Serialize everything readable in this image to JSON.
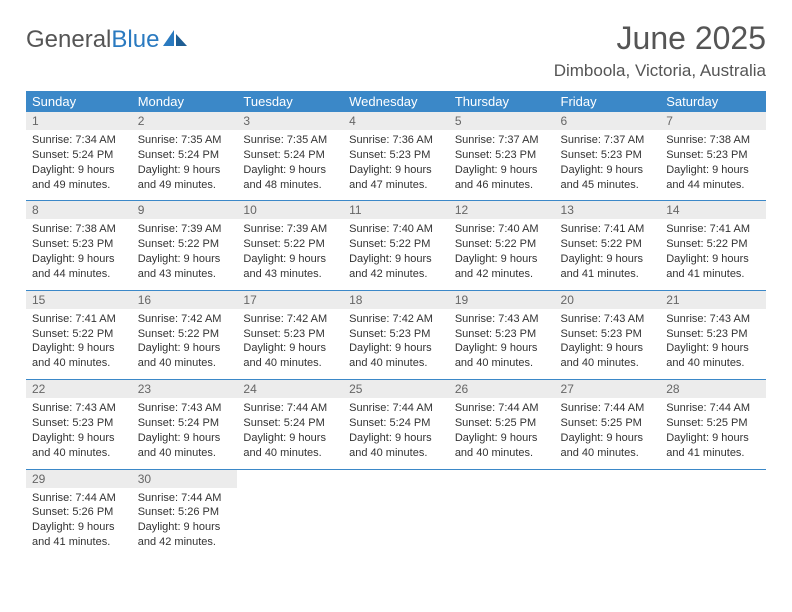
{
  "brand": {
    "word1": "General",
    "word2": "Blue",
    "accent_color": "#2a7ac0"
  },
  "title": "June 2025",
  "location": "Dimboola, Victoria, Australia",
  "colors": {
    "header_bg": "#3b88c8",
    "header_text": "#ffffff",
    "daynum_bg": "#ececec",
    "text": "#333333",
    "rule": "#3b88c8"
  },
  "day_headers": [
    "Sunday",
    "Monday",
    "Tuesday",
    "Wednesday",
    "Thursday",
    "Friday",
    "Saturday"
  ],
  "weeks": [
    [
      {
        "n": "1",
        "sr": "Sunrise: 7:34 AM",
        "ss": "Sunset: 5:24 PM",
        "dl": "Daylight: 9 hours and 49 minutes."
      },
      {
        "n": "2",
        "sr": "Sunrise: 7:35 AM",
        "ss": "Sunset: 5:24 PM",
        "dl": "Daylight: 9 hours and 49 minutes."
      },
      {
        "n": "3",
        "sr": "Sunrise: 7:35 AM",
        "ss": "Sunset: 5:24 PM",
        "dl": "Daylight: 9 hours and 48 minutes."
      },
      {
        "n": "4",
        "sr": "Sunrise: 7:36 AM",
        "ss": "Sunset: 5:23 PM",
        "dl": "Daylight: 9 hours and 47 minutes."
      },
      {
        "n": "5",
        "sr": "Sunrise: 7:37 AM",
        "ss": "Sunset: 5:23 PM",
        "dl": "Daylight: 9 hours and 46 minutes."
      },
      {
        "n": "6",
        "sr": "Sunrise: 7:37 AM",
        "ss": "Sunset: 5:23 PM",
        "dl": "Daylight: 9 hours and 45 minutes."
      },
      {
        "n": "7",
        "sr": "Sunrise: 7:38 AM",
        "ss": "Sunset: 5:23 PM",
        "dl": "Daylight: 9 hours and 44 minutes."
      }
    ],
    [
      {
        "n": "8",
        "sr": "Sunrise: 7:38 AM",
        "ss": "Sunset: 5:23 PM",
        "dl": "Daylight: 9 hours and 44 minutes."
      },
      {
        "n": "9",
        "sr": "Sunrise: 7:39 AM",
        "ss": "Sunset: 5:22 PM",
        "dl": "Daylight: 9 hours and 43 minutes."
      },
      {
        "n": "10",
        "sr": "Sunrise: 7:39 AM",
        "ss": "Sunset: 5:22 PM",
        "dl": "Daylight: 9 hours and 43 minutes."
      },
      {
        "n": "11",
        "sr": "Sunrise: 7:40 AM",
        "ss": "Sunset: 5:22 PM",
        "dl": "Daylight: 9 hours and 42 minutes."
      },
      {
        "n": "12",
        "sr": "Sunrise: 7:40 AM",
        "ss": "Sunset: 5:22 PM",
        "dl": "Daylight: 9 hours and 42 minutes."
      },
      {
        "n": "13",
        "sr": "Sunrise: 7:41 AM",
        "ss": "Sunset: 5:22 PM",
        "dl": "Daylight: 9 hours and 41 minutes."
      },
      {
        "n": "14",
        "sr": "Sunrise: 7:41 AM",
        "ss": "Sunset: 5:22 PM",
        "dl": "Daylight: 9 hours and 41 minutes."
      }
    ],
    [
      {
        "n": "15",
        "sr": "Sunrise: 7:41 AM",
        "ss": "Sunset: 5:22 PM",
        "dl": "Daylight: 9 hours and 40 minutes."
      },
      {
        "n": "16",
        "sr": "Sunrise: 7:42 AM",
        "ss": "Sunset: 5:22 PM",
        "dl": "Daylight: 9 hours and 40 minutes."
      },
      {
        "n": "17",
        "sr": "Sunrise: 7:42 AM",
        "ss": "Sunset: 5:23 PM",
        "dl": "Daylight: 9 hours and 40 minutes."
      },
      {
        "n": "18",
        "sr": "Sunrise: 7:42 AM",
        "ss": "Sunset: 5:23 PM",
        "dl": "Daylight: 9 hours and 40 minutes."
      },
      {
        "n": "19",
        "sr": "Sunrise: 7:43 AM",
        "ss": "Sunset: 5:23 PM",
        "dl": "Daylight: 9 hours and 40 minutes."
      },
      {
        "n": "20",
        "sr": "Sunrise: 7:43 AM",
        "ss": "Sunset: 5:23 PM",
        "dl": "Daylight: 9 hours and 40 minutes."
      },
      {
        "n": "21",
        "sr": "Sunrise: 7:43 AM",
        "ss": "Sunset: 5:23 PM",
        "dl": "Daylight: 9 hours and 40 minutes."
      }
    ],
    [
      {
        "n": "22",
        "sr": "Sunrise: 7:43 AM",
        "ss": "Sunset: 5:23 PM",
        "dl": "Daylight: 9 hours and 40 minutes."
      },
      {
        "n": "23",
        "sr": "Sunrise: 7:43 AM",
        "ss": "Sunset: 5:24 PM",
        "dl": "Daylight: 9 hours and 40 minutes."
      },
      {
        "n": "24",
        "sr": "Sunrise: 7:44 AM",
        "ss": "Sunset: 5:24 PM",
        "dl": "Daylight: 9 hours and 40 minutes."
      },
      {
        "n": "25",
        "sr": "Sunrise: 7:44 AM",
        "ss": "Sunset: 5:24 PM",
        "dl": "Daylight: 9 hours and 40 minutes."
      },
      {
        "n": "26",
        "sr": "Sunrise: 7:44 AM",
        "ss": "Sunset: 5:25 PM",
        "dl": "Daylight: 9 hours and 40 minutes."
      },
      {
        "n": "27",
        "sr": "Sunrise: 7:44 AM",
        "ss": "Sunset: 5:25 PM",
        "dl": "Daylight: 9 hours and 40 minutes."
      },
      {
        "n": "28",
        "sr": "Sunrise: 7:44 AM",
        "ss": "Sunset: 5:25 PM",
        "dl": "Daylight: 9 hours and 41 minutes."
      }
    ],
    [
      {
        "n": "29",
        "sr": "Sunrise: 7:44 AM",
        "ss": "Sunset: 5:26 PM",
        "dl": "Daylight: 9 hours and 41 minutes."
      },
      {
        "n": "30",
        "sr": "Sunrise: 7:44 AM",
        "ss": "Sunset: 5:26 PM",
        "dl": "Daylight: 9 hours and 42 minutes."
      },
      null,
      null,
      null,
      null,
      null
    ]
  ]
}
